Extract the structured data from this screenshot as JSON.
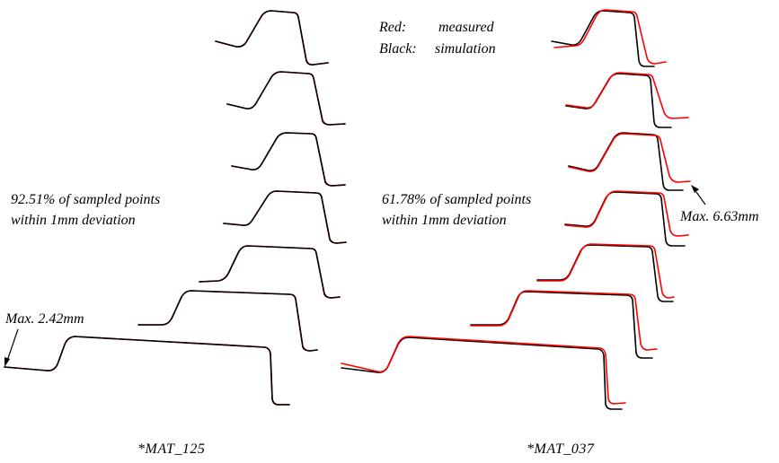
{
  "legend": {
    "red_key": "Red:",
    "red_value": "measured",
    "black_key": "Black:",
    "black_value": "simulation"
  },
  "left_panel": {
    "stat_line1": "92.51% of sampled points",
    "stat_line2": "within 1mm deviation",
    "max_label": "Max. 2.42mm",
    "caption": "*MAT_125"
  },
  "right_panel": {
    "stat_line1": "61.78% of sampled points",
    "stat_line2": "within 1mm deviation",
    "max_label": "Max. 6.63mm",
    "caption": "*MAT_037"
  },
  "colors": {
    "measured": "#ff0000",
    "simulation": "#000000"
  }
}
